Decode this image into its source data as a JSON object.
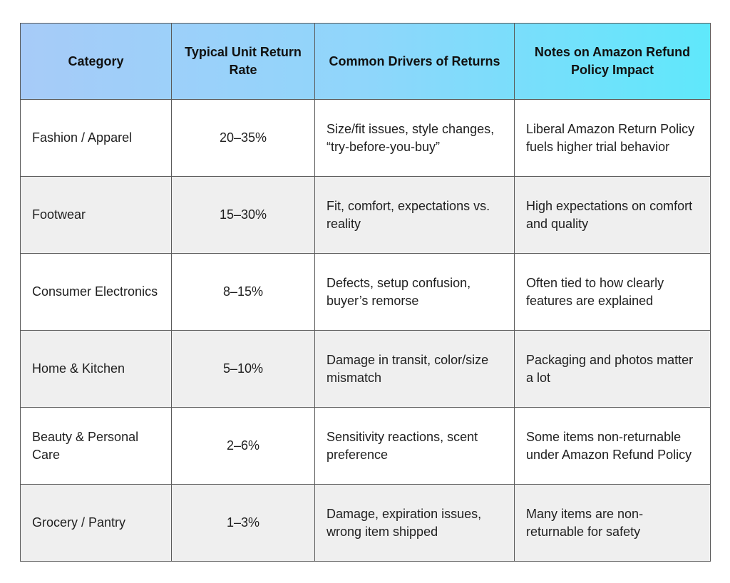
{
  "headers": {
    "category": "Category",
    "rate": "Typical Unit Return Rate",
    "drivers": "Common Drivers of Returns",
    "notes": "Notes on Amazon Refund Policy Impact"
  },
  "rows": [
    {
      "category": "Fashion / Apparel",
      "rate": "20–35%",
      "drivers": "Size/fit issues, style changes, “try-before-you-buy”",
      "notes": "Liberal Amazon Return Policy fuels higher trial behavior"
    },
    {
      "category": "Footwear",
      "rate": "15–30%",
      "drivers": "Fit, comfort, expectations vs. reality",
      "notes": "High expectations on comfort and quality"
    },
    {
      "category": "Consumer Electronics",
      "rate": "8–15%",
      "drivers": "Defects, setup confusion, buyer’s remorse",
      "notes": "Often tied to how clearly features are explained"
    },
    {
      "category": "Home & Kitchen",
      "rate": "5–10%",
      "drivers": "Damage in transit, color/size mismatch",
      "notes": "Packaging and photos matter a lot"
    },
    {
      "category": "Beauty & Personal Care",
      "rate": "2–6%",
      "drivers": "Sensitivity reactions, scent preference",
      "notes": "Some items non-returnable under Amazon Refund Policy"
    },
    {
      "category": "Grocery / Pantry",
      "rate": "1–3%",
      "drivers": "Damage, expiration issues, wrong item shipped",
      "notes": "Many items are non-returnable for safety"
    }
  ],
  "colors": {
    "header_gradient_start": "#a7cbf8",
    "header_gradient_end": "#5fe8fb",
    "alt_row": "#efefef",
    "border": "#5a5a5a"
  }
}
